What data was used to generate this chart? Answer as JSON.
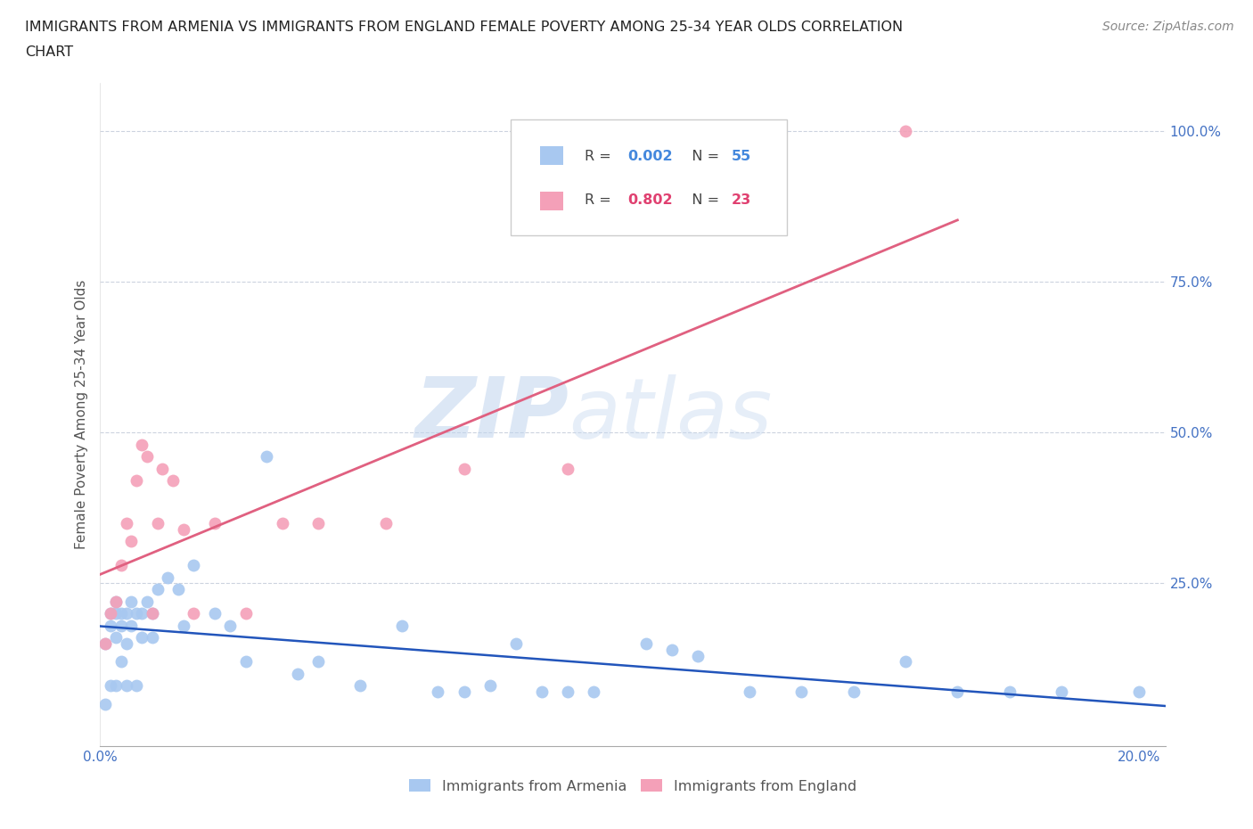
{
  "title_line1": "IMMIGRANTS FROM ARMENIA VS IMMIGRANTS FROM ENGLAND FEMALE POVERTY AMONG 25-34 YEAR OLDS CORRELATION",
  "title_line2": "CHART",
  "source_text": "Source: ZipAtlas.com",
  "ylabel": "Female Poverty Among 25-34 Year Olds",
  "watermark_zip": "ZIP",
  "watermark_atlas": "atlas",
  "legend_armenia": "Immigrants from Armenia",
  "legend_england": "Immigrants from England",
  "R_armenia": 0.002,
  "N_armenia": 55,
  "R_england": 0.802,
  "N_england": 23,
  "color_armenia": "#a8c8f0",
  "color_england": "#f4a0b8",
  "color_armenia_line": "#2255bb",
  "color_england_line": "#e06080",
  "color_r_armenia": "#4488dd",
  "color_r_england": "#e04070",
  "color_n_armenia": "#4488dd",
  "color_n_england": "#e04070",
  "arm_x": [
    0.001,
    0.001,
    0.002,
    0.002,
    0.002,
    0.003,
    0.003,
    0.003,
    0.003,
    0.004,
    0.004,
    0.004,
    0.005,
    0.005,
    0.005,
    0.006,
    0.006,
    0.007,
    0.007,
    0.008,
    0.008,
    0.009,
    0.01,
    0.01,
    0.011,
    0.013,
    0.015,
    0.016,
    0.018,
    0.022,
    0.025,
    0.028,
    0.032,
    0.038,
    0.042,
    0.05,
    0.058,
    0.065,
    0.075,
    0.085,
    0.095,
    0.105,
    0.115,
    0.125,
    0.135,
    0.145,
    0.155,
    0.165,
    0.175,
    0.185,
    0.07,
    0.08,
    0.09,
    0.11,
    0.2
  ],
  "arm_y": [
    0.05,
    0.15,
    0.18,
    0.08,
    0.2,
    0.16,
    0.2,
    0.08,
    0.22,
    0.18,
    0.12,
    0.2,
    0.2,
    0.08,
    0.15,
    0.18,
    0.22,
    0.2,
    0.08,
    0.2,
    0.16,
    0.22,
    0.2,
    0.16,
    0.24,
    0.26,
    0.24,
    0.18,
    0.28,
    0.2,
    0.18,
    0.12,
    0.46,
    0.1,
    0.12,
    0.08,
    0.18,
    0.07,
    0.08,
    0.07,
    0.07,
    0.15,
    0.13,
    0.07,
    0.07,
    0.07,
    0.12,
    0.07,
    0.07,
    0.07,
    0.07,
    0.15,
    0.07,
    0.14,
    0.07
  ],
  "eng_x": [
    0.001,
    0.002,
    0.003,
    0.004,
    0.005,
    0.006,
    0.007,
    0.008,
    0.009,
    0.01,
    0.011,
    0.012,
    0.014,
    0.016,
    0.018,
    0.022,
    0.028,
    0.035,
    0.042,
    0.055,
    0.07,
    0.09,
    0.155
  ],
  "eng_y": [
    0.15,
    0.2,
    0.22,
    0.28,
    0.35,
    0.32,
    0.42,
    0.48,
    0.46,
    0.2,
    0.35,
    0.44,
    0.42,
    0.34,
    0.2,
    0.35,
    0.2,
    0.35,
    0.35,
    0.35,
    0.44,
    0.44,
    1.0
  ],
  "xlim": [
    0.0,
    0.205
  ],
  "ylim": [
    -0.02,
    1.08
  ],
  "yticks": [
    0.25,
    0.5,
    0.75,
    1.0
  ],
  "xtick_positions": [
    0.0,
    0.02,
    0.04,
    0.06,
    0.08,
    0.1,
    0.12,
    0.14,
    0.16,
    0.18,
    0.2
  ]
}
